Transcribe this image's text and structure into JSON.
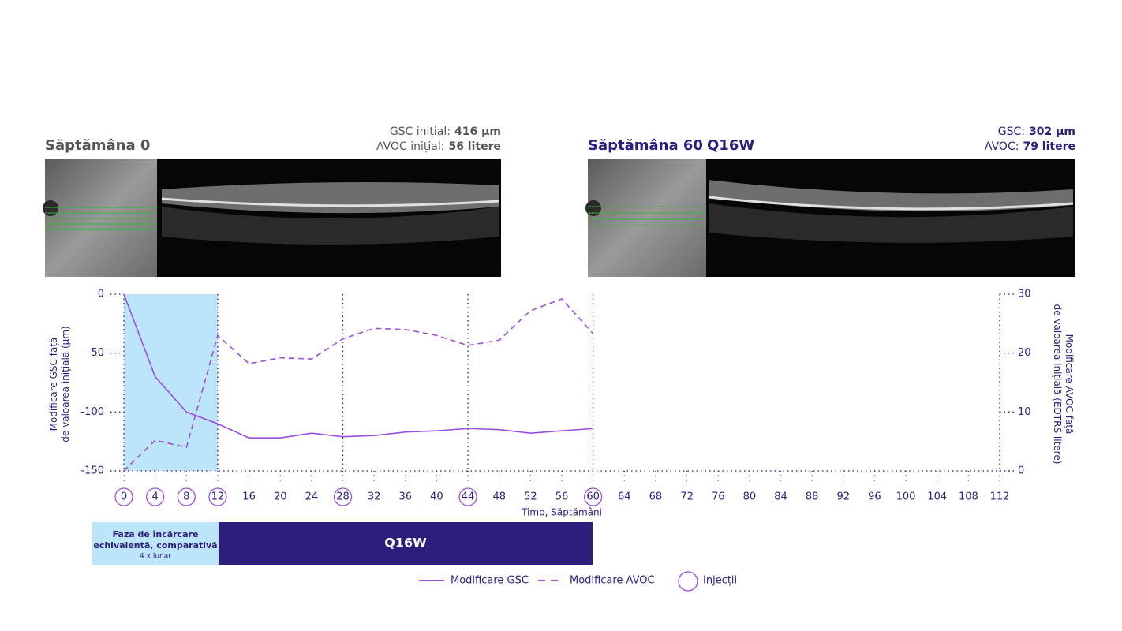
{
  "panels": [
    {
      "title": "Săptămâna 0",
      "regimen": null,
      "gsc": {
        "label": "GSC inițial:",
        "value": "416 µm"
      },
      "avoc": {
        "label": "AVOC inițial:",
        "value": "56 litere"
      }
    },
    {
      "title": "Săptămâna 60",
      "regimen": "Q16W",
      "gsc": {
        "label": "GSC:",
        "value": "302 µm"
      },
      "avoc": {
        "label": "AVOC:",
        "value": "79 litere"
      }
    }
  ],
  "chart_data": {
    "type": "line",
    "x_label": "Timp, Săptămâni",
    "y_label": "Modificare GSC față de valoarea inițială (µm)",
    "y2_label": "Modificare AVOC față de valoarea inițială (EDTRS litere)",
    "xlim": [
      0,
      112
    ],
    "xticks": [
      0,
      4,
      8,
      12,
      16,
      20,
      24,
      28,
      32,
      36,
      40,
      44,
      48,
      52,
      56,
      60,
      64,
      68,
      72,
      76,
      80,
      84,
      88,
      92,
      96,
      100,
      104,
      108,
      112
    ],
    "ylim": [
      -150,
      0
    ],
    "yticks": [
      -150,
      -100,
      -50,
      0
    ],
    "y2lim": [
      0,
      30
    ],
    "y2ticks": [
      0,
      10,
      20,
      30
    ],
    "x": [
      0,
      4,
      8,
      12,
      16,
      20,
      24,
      28,
      32,
      36,
      40,
      44,
      48,
      52,
      56,
      60
    ],
    "series": [
      {
        "name": "Modificare GSC",
        "color": "#9a4fe0",
        "dash": false,
        "values": [
          0,
          -70,
          -100,
          -110,
          -122,
          -122,
          -118,
          -121,
          -120,
          -117,
          -116,
          -114,
          -115,
          -118,
          -116,
          -114
        ]
      },
      {
        "name": "Modificare AVOC",
        "color": "#9a4fe0",
        "dash": true,
        "axis": "y2",
        "values": [
          0,
          5.2,
          4,
          23,
          18.2,
          19.2,
          19,
          22.4,
          24.2,
          24,
          23,
          21.3,
          22.2,
          27.2,
          29.2,
          23.3
        ]
      }
    ],
    "injections": {
      "name": "Injecții",
      "weeks": [
        0,
        4,
        8,
        12,
        28,
        44,
        60
      ]
    },
    "reference_lines": [
      12,
      28,
      44,
      60
    ],
    "shaded_range": [
      0,
      12
    ],
    "phases": [
      {
        "label": "Faza de încărcare echivalentă, comparativă",
        "sublabel": "4 x lunar"
      },
      {
        "label": "Q16W"
      }
    ]
  }
}
